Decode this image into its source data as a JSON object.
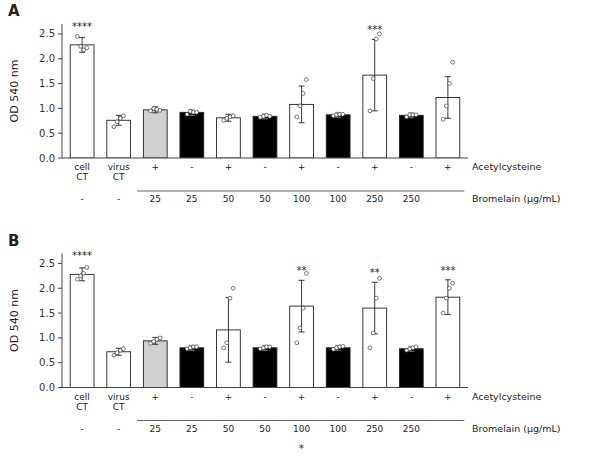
{
  "chart_data": [
    {
      "type": "bar",
      "title": "A",
      "ylabel": "OD 540 nm",
      "categories": [
        "cell\nCT",
        "virus\nCT",
        "+",
        "-",
        "+",
        "-",
        "+",
        "-",
        "+",
        "-",
        "+"
      ],
      "subcategories": [
        "-",
        "-",
        "25",
        "25",
        "50",
        "50",
        "100",
        "100",
        "250",
        "250",
        null
      ],
      "xlabel": [
        "Acetylcysteine",
        "Bromelain (μg/mL)"
      ],
      "values": [
        2.28,
        0.76,
        0.97,
        0.92,
        0.81,
        0.84,
        1.08,
        0.87,
        1.67,
        0.86,
        1.22
      ],
      "errors": [
        0.15,
        0.1,
        0.06,
        0.06,
        0.07,
        0.05,
        0.37,
        0.05,
        0.72,
        0.05,
        0.42
      ],
      "points": [
        [
          2.45,
          2.25,
          2.18,
          2.22
        ],
        [
          0.63,
          0.73,
          0.8,
          0.85
        ],
        [
          0.95,
          1.0,
          0.98,
          0.96
        ],
        [
          0.88,
          0.94,
          0.92,
          0.92
        ],
        [
          0.76,
          0.8,
          0.83,
          0.85
        ],
        [
          0.82,
          0.84,
          0.86,
          0.84
        ],
        [
          0.83,
          1.05,
          1.3,
          1.58
        ],
        [
          0.85,
          0.87,
          0.88,
          0.88
        ],
        [
          0.95,
          1.6,
          2.4,
          2.5
        ],
        [
          0.83,
          0.87,
          0.87,
          0.87
        ],
        [
          0.78,
          1.05,
          1.5,
          1.93
        ]
      ],
      "colors": [
        "white",
        "white",
        "#d0d0d0",
        "black",
        "white",
        "black",
        "white",
        "black",
        "white",
        "black",
        "white"
      ],
      "annotations": [
        {
          "text": "****",
          "category": 0,
          "y": 2.58
        },
        {
          "text": "***",
          "category": 8,
          "y": 2.52
        }
      ],
      "ylim": [
        0.0,
        2.7
      ],
      "yticks": [
        {
          "value": 0.0,
          "label": "0.0"
        },
        0.5,
        {
          "value": 1.0,
          "label": "1.0"
        },
        1.5,
        {
          "value": 2.0,
          "label": "2.0"
        },
        2.5
      ],
      "grid": false
    },
    {
      "type": "bar",
      "title": "B",
      "ylabel": "OD 540 nm",
      "categories": [
        "cell\nCT",
        "virus\nCT",
        "+",
        "-",
        "+",
        "-",
        "+",
        "-",
        "+",
        "-",
        "+"
      ],
      "subcategories": [
        "-",
        "-",
        "25",
        "25",
        "50",
        "50",
        "100",
        "100",
        "250",
        "250",
        null
      ],
      "xlabel": [
        "Acetylcysteine",
        "Bromelain (μg/mL)"
      ],
      "values": [
        2.28,
        0.72,
        0.94,
        0.8,
        1.16,
        0.8,
        1.64,
        0.8,
        1.6,
        0.78,
        1.82
      ],
      "errors": [
        0.13,
        0.07,
        0.07,
        0.05,
        0.65,
        0.05,
        0.52,
        0.05,
        0.52,
        0.05,
        0.35
      ],
      "points": [
        [
          2.18,
          2.25,
          2.3,
          2.42
        ],
        [
          0.65,
          0.7,
          0.75,
          0.78
        ],
        [
          0.89,
          0.93,
          0.97,
          1.0
        ],
        [
          0.78,
          0.8,
          0.82,
          0.82
        ],
        [
          0.8,
          0.9,
          1.8,
          2.0
        ],
        [
          0.78,
          0.8,
          0.82,
          0.82
        ],
        [
          0.9,
          1.2,
          1.6,
          2.3
        ],
        [
          0.77,
          0.8,
          0.82,
          0.83
        ],
        [
          0.8,
          1.1,
          1.8,
          2.2
        ],
        [
          0.75,
          0.78,
          0.8,
          0.82
        ],
        [
          1.5,
          1.8,
          2.0,
          2.1
        ]
      ],
      "colors": [
        "white",
        "white",
        "#d0d0d0",
        "black",
        "white",
        "black",
        "white",
        "black",
        "white",
        "black",
        "white"
      ],
      "annotations": [
        {
          "text": "****",
          "category": 0,
          "y": 2.58
        },
        {
          "text": "**",
          "category": 6,
          "y": 2.28
        },
        {
          "text": "**",
          "category": 8,
          "y": 2.25
        },
        {
          "text": "***",
          "category": 10,
          "y": 2.28
        },
        {
          "text": "*",
          "category": 6
        }
      ],
      "ylim": [
        0.0,
        2.7
      ],
      "yticks": [
        {
          "value": 0.0,
          "label": "0.0"
        },
        0.5,
        {
          "value": 1.0,
          "label": "1.0"
        },
        1.5,
        {
          "value": 2.0,
          "label": "2.0"
        },
        2.5
      ],
      "grid": false
    }
  ]
}
